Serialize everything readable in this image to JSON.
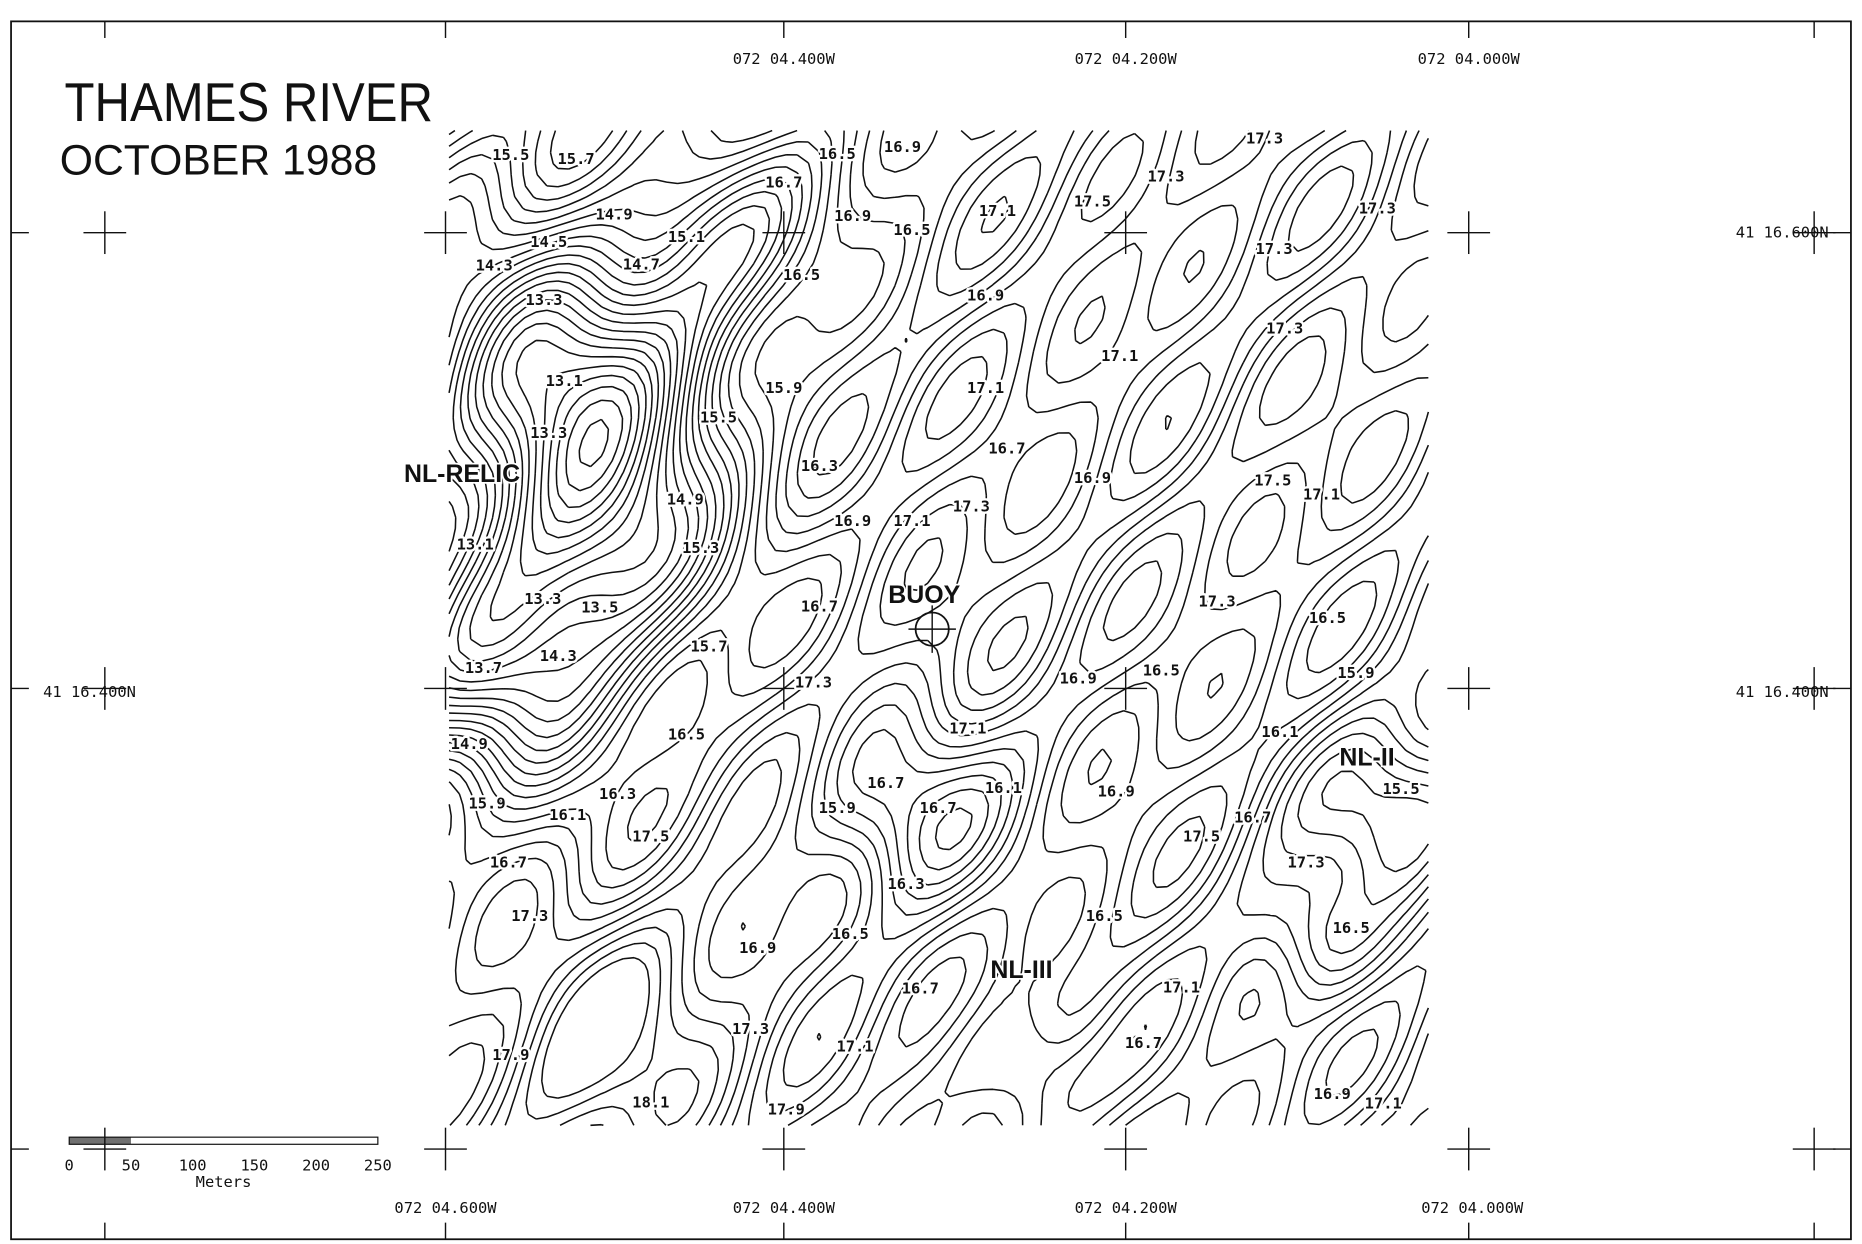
{
  "header": {
    "title": "THAMES RIVER",
    "subtitle": "OCTOBER 1988"
  },
  "axes": {
    "top": [
      "072 04.400W",
      "072 04.200W",
      "072 04.000W"
    ],
    "bottom": [
      "072 04.600W",
      "072 04.400W",
      "072 04.200W",
      "072 04.000W"
    ],
    "left": [
      "41 16.400N"
    ],
    "right": [
      "41 16.600N",
      "41 16.400N"
    ]
  },
  "places": [
    "NL-RELIC",
    "BUOY",
    "NL-II",
    "NL-III"
  ],
  "scale_bar": {
    "ticks": [
      "0",
      "50",
      "100",
      "150",
      "200",
      "250"
    ],
    "unit": "Meters"
  },
  "contour_labels": [
    "15.5",
    "15.7",
    "16.5",
    "16.9",
    "16.7",
    "16.9",
    "16.5",
    "17.1",
    "17.5",
    "17.3",
    "17.3",
    "17.3",
    "17.3",
    "14.9",
    "15.1",
    "14.3",
    "14.5",
    "14.7",
    "16.5",
    "16.9",
    "13.3",
    "17.3",
    "17.1",
    "13.1",
    "15.9",
    "17.1",
    "13.3",
    "15.5",
    "16.7",
    "16.3",
    "16.9",
    "17.5",
    "17.1",
    "14.9",
    "16.9",
    "17.1",
    "17.3",
    "13.1",
    "15.3",
    "13.3",
    "13.5",
    "16.7",
    "17.3",
    "16.5",
    "15.7",
    "13.7",
    "14.3",
    "17.3",
    "16.9",
    "16.5",
    "15.9",
    "14.9",
    "16.5",
    "17.1",
    "16.1",
    "15.5",
    "16.1",
    "16.9",
    "15.9",
    "16.1",
    "16.3",
    "16.7",
    "15.9",
    "16.7",
    "16.7",
    "17.5",
    "17.5",
    "16.7",
    "16.3",
    "17.3",
    "17.3",
    "16.5",
    "16.5",
    "16.5",
    "16.9",
    "16.7",
    "17.1",
    "17.3",
    "17.1",
    "16.7",
    "17.9",
    "16.9",
    "17.1",
    "18.1",
    "17.9"
  ]
}
